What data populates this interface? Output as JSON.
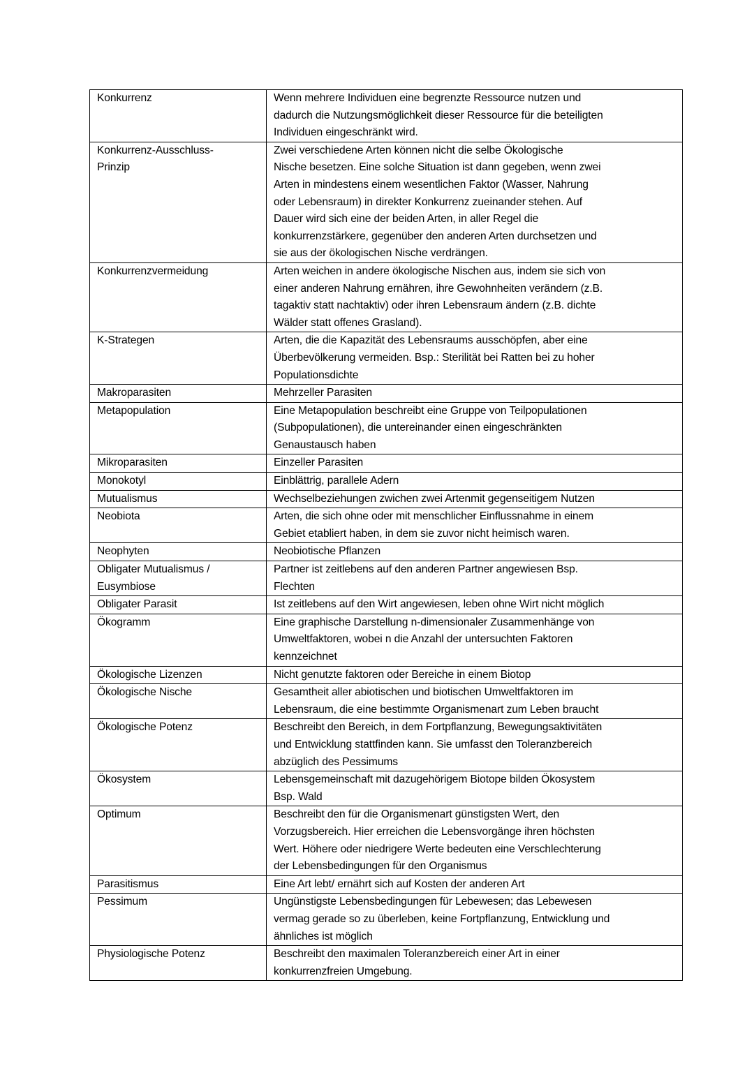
{
  "glossary": [
    {
      "term": [
        "Konkurrenz"
      ],
      "definition": [
        "Wenn mehrere Individuen eine begrenzte Ressource nutzen und",
        "dadurch die Nutzungsmöglichkeit dieser Ressource für die beteiligten",
        "Individuen eingeschränkt wird."
      ]
    },
    {
      "term": [
        "Konkurrenz-Ausschluss-",
        "Prinzip"
      ],
      "definition": [
        "Zwei verschiedene Arten können nicht die selbe Ökologische",
        "Nische besetzen. Eine solche Situation ist dann gegeben, wenn zwei",
        "Arten in mindestens einem wesentlichen Faktor (Wasser, Nahrung",
        "oder Lebensraum) in direkter Konkurrenz zueinander stehen. Auf",
        "Dauer wird sich eine der beiden Arten, in aller Regel die",
        "konkurrenzstärkere, gegenüber den anderen Arten durchsetzen und",
        "sie aus der ökologischen Nische verdrängen."
      ]
    },
    {
      "term": [
        "Konkurrenzvermeidung"
      ],
      "definition": [
        "Arten weichen in andere ökologische Nischen aus, indem sie sich von",
        "einer anderen Nahrung ernähren, ihre Gewohnheiten verändern (z.B.",
        "tagaktiv statt nachtaktiv) oder ihren Lebensraum ändern (z.B. dichte",
        "Wälder statt offenes Grasland)."
      ]
    },
    {
      "term": [
        "K-Strategen"
      ],
      "definition": [
        "Arten, die die Kapazität des Lebensraums ausschöpfen, aber eine",
        "Überbevölkerung vermeiden. Bsp.: Sterilität bei Ratten bei zu hoher",
        "Populationsdichte"
      ]
    },
    {
      "term": [
        "Makroparasiten"
      ],
      "definition": [
        "Mehrzeller Parasiten"
      ]
    },
    {
      "term": [
        "Metapopulation"
      ],
      "definition": [
        "Eine Metapopulation beschreibt eine Gruppe von Teilpopulationen",
        "(Subpopulationen), die untereinander einen eingeschränkten",
        "Genaustausch haben"
      ]
    },
    {
      "term": [
        "Mikroparasiten"
      ],
      "definition": [
        "Einzeller Parasiten"
      ]
    },
    {
      "term": [
        "Monokotyl"
      ],
      "definition": [
        "Einblättrig, parallele Adern"
      ]
    },
    {
      "term": [
        "Mutualismus"
      ],
      "definition": [
        "Wechselbeziehungen zwichen zwei Artenmit gegenseitigem Nutzen"
      ]
    },
    {
      "term": [
        "Neobiota"
      ],
      "definition": [
        "Arten, die sich ohne oder mit menschlicher Einflussnahme in einem",
        "Gebiet etabliert haben, in dem sie zuvor nicht heimisch waren."
      ]
    },
    {
      "term": [
        "Neophyten"
      ],
      "definition": [
        "Neobiotische Pflanzen"
      ]
    },
    {
      "term": [
        "Obligater Mutualismus /",
        "Eusymbiose"
      ],
      "definition": [
        "Partner ist zeitlebens auf den anderen Partner angewiesen Bsp.",
        "Flechten"
      ]
    },
    {
      "term": [
        "Obligater Parasit"
      ],
      "definition": [
        "Ist zeitlebens auf den Wirt angewiesen, leben ohne Wirt nicht möglich"
      ]
    },
    {
      "term": [
        "Ökogramm"
      ],
      "definition": [
        "Eine graphische Darstellung n-dimensionaler Zusammenhänge von",
        "Umweltfaktoren, wobei n die Anzahl der untersuchten Faktoren",
        "kennzeichnet"
      ]
    },
    {
      "term": [
        "Ökologische Lizenzen"
      ],
      "definition": [
        "Nicht genutzte faktoren oder Bereiche in einem Biotop"
      ]
    },
    {
      "term": [
        "Ökologische Nische"
      ],
      "definition": [
        "Gesamtheit aller abiotischen und biotischen Umweltfaktoren im",
        "Lebensraum, die eine bestimmte Organismenart zum Leben braucht"
      ]
    },
    {
      "term": [
        "Ökologische Potenz"
      ],
      "definition": [
        "Beschreibt den Bereich, in dem Fortpflanzung, Bewegungsaktivitäten",
        "und Entwicklung stattfinden kann. Sie umfasst den Toleranzbereich",
        "abzüglich des Pessimums"
      ]
    },
    {
      "term": [
        "Ökosystem"
      ],
      "definition": [
        "Lebensgemeinschaft mit dazugehörigem Biotope bilden Ökosystem",
        "Bsp. Wald"
      ]
    },
    {
      "term": [
        "Optimum"
      ],
      "definition": [
        "Beschreibt den für die Organismenart günstigsten Wert, den",
        "Vorzugsbereich. Hier erreichen die Lebensvorgänge ihren höchsten",
        "Wert. Höhere oder niedrigere Werte bedeuten eine Verschlechterung",
        "der Lebensbedingungen für den Organismus"
      ]
    },
    {
      "term": [
        "Parasitismus"
      ],
      "definition": [
        "Eine Art lebt/ ernährt sich auf Kosten der anderen Art"
      ]
    },
    {
      "term": [
        "Pessimum"
      ],
      "definition": [
        "Ungünstigste Lebensbedingungen für Lebewesen; das Lebewesen",
        "vermag gerade so zu überleben, keine Fortpflanzung, Entwicklung und",
        "ähnliches ist möglich"
      ]
    },
    {
      "term": [
        "Physiologische Potenz"
      ],
      "definition": [
        "Beschreibt den maximalen Toleranzbereich einer Art in einer",
        "konkurrenzfreien Umgebung."
      ]
    }
  ]
}
